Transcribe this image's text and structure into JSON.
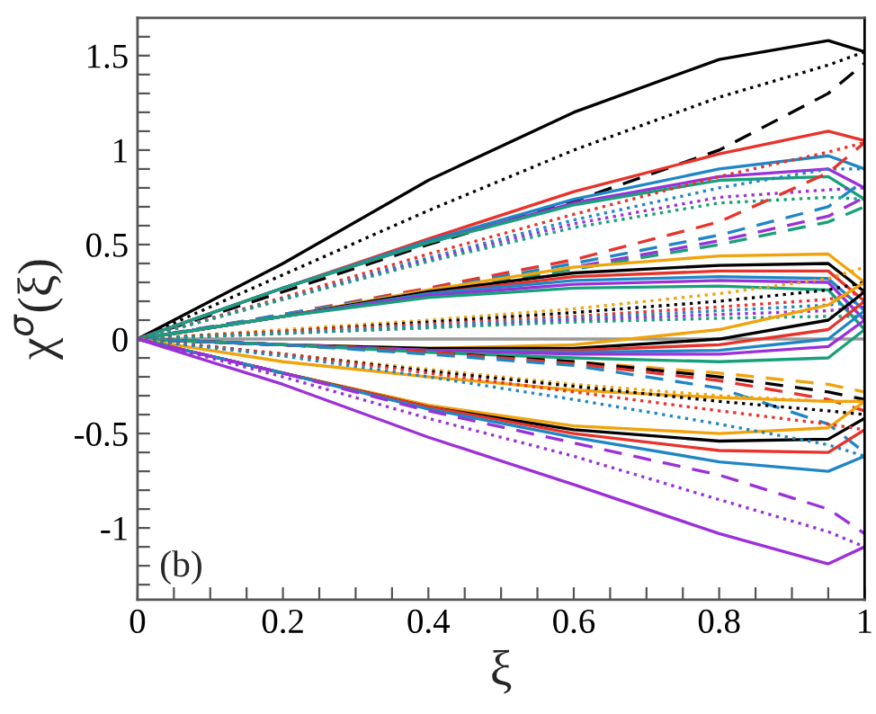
{
  "chart_data": {
    "type": "line",
    "xlabel": "ξ",
    "ylabel": "χ$^{σ}$(ξ)",
    "annotations": [
      "(b)"
    ],
    "x": [
      0,
      0.2,
      0.4,
      0.6,
      0.8,
      0.95,
      1
    ],
    "xlim": [
      0,
      1
    ],
    "ylim": [
      -1.38,
      1.7
    ],
    "xticks": [
      0,
      {
        "value": 0.05,
        "label": null
      },
      {
        "value": 0.1,
        "label": null
      },
      {
        "value": 0.15,
        "label": null
      },
      0.2,
      {
        "value": 0.25,
        "label": null
      },
      {
        "value": 0.3,
        "label": null
      },
      {
        "value": 0.35,
        "label": null
      },
      0.4,
      {
        "value": 0.45,
        "label": null
      },
      {
        "value": 0.5,
        "label": null
      },
      {
        "value": 0.55,
        "label": null
      },
      0.6,
      {
        "value": 0.65,
        "label": null
      },
      {
        "value": 0.7,
        "label": null
      },
      {
        "value": 0.75,
        "label": null
      },
      0.8,
      {
        "value": 0.85,
        "label": null
      },
      {
        "value": 0.9,
        "label": null
      },
      {
        "value": 0.95,
        "label": null
      },
      1
    ],
    "yticks": [
      {
        "value": -1.3,
        "label": null
      },
      {
        "value": -1.2,
        "label": null
      },
      {
        "value": -1.1,
        "label": null
      },
      -1,
      {
        "value": -0.9,
        "label": null
      },
      {
        "value": -0.8,
        "label": null
      },
      {
        "value": -0.7,
        "label": null
      },
      {
        "value": -0.6,
        "label": null
      },
      -0.5,
      {
        "value": -0.4,
        "label": null
      },
      {
        "value": -0.3,
        "label": null
      },
      {
        "value": -0.2,
        "label": null
      },
      {
        "value": -0.1,
        "label": null
      },
      0,
      {
        "value": 0.1,
        "label": null
      },
      {
        "value": 0.2,
        "label": null
      },
      {
        "value": 0.3,
        "label": null
      },
      {
        "value": 0.4,
        "label": null
      },
      0.5,
      {
        "value": 0.6,
        "label": null
      },
      {
        "value": 0.7,
        "label": null
      },
      {
        "value": 0.8,
        "label": null
      },
      {
        "value": 0.9,
        "label": null
      },
      1,
      {
        "value": 1.1,
        "label": null
      },
      {
        "value": 1.2,
        "label": null
      },
      {
        "value": 1.3,
        "label": null
      },
      {
        "value": 1.4,
        "label": null
      },
      1.5,
      {
        "value": 1.6,
        "label": null
      }
    ],
    "grid": false,
    "legend": false,
    "marker": "none",
    "series": [
      {
        "color": "#999999",
        "line_style": "solid",
        "values": [
          0,
          0,
          0,
          0,
          0,
          0,
          0
        ]
      },
      {
        "color": "#000000",
        "line_style": "solid",
        "values": [
          0,
          0.4,
          0.84,
          1.2,
          1.48,
          1.58,
          1.52
        ]
      },
      {
        "color": "#000000",
        "line_style": "dotted",
        "values": [
          0,
          0.34,
          0.68,
          1.0,
          1.28,
          1.45,
          1.52
        ]
      },
      {
        "color": "#000000",
        "line_style": "dashed",
        "values": [
          0,
          0.25,
          0.5,
          0.73,
          1.0,
          1.3,
          1.46
        ]
      },
      {
        "color": "#e8322a",
        "line_style": "solid",
        "values": [
          0,
          0.27,
          0.53,
          0.78,
          0.98,
          1.1,
          1.05
        ]
      },
      {
        "color": "#1f86c5",
        "line_style": "solid",
        "values": [
          0,
          0.27,
          0.52,
          0.74,
          0.9,
          0.97,
          0.9
        ]
      },
      {
        "color": "#9b30d9",
        "line_style": "solid",
        "values": [
          0,
          0.27,
          0.51,
          0.72,
          0.86,
          0.9,
          0.8
        ]
      },
      {
        "color": "#17a07a",
        "line_style": "solid",
        "values": [
          0,
          0.27,
          0.51,
          0.71,
          0.84,
          0.86,
          0.74
        ]
      },
      {
        "color": "#e8322a",
        "line_style": "dotted",
        "values": [
          0,
          0.22,
          0.45,
          0.66,
          0.86,
          0.99,
          1.04
        ]
      },
      {
        "color": "#1f86c5",
        "line_style": "dotted",
        "values": [
          0,
          0.21,
          0.43,
          0.63,
          0.8,
          0.9,
          0.9
        ]
      },
      {
        "color": "#9b30d9",
        "line_style": "dotted",
        "values": [
          0,
          0.21,
          0.42,
          0.61,
          0.75,
          0.79,
          0.8
        ]
      },
      {
        "color": "#17a07a",
        "line_style": "dotted",
        "values": [
          0,
          0.21,
          0.41,
          0.59,
          0.72,
          0.75,
          0.74
        ]
      },
      {
        "color": "#e8322a",
        "line_style": "dashed",
        "values": [
          0,
          0.13,
          0.27,
          0.42,
          0.62,
          0.88,
          1.04
        ]
      },
      {
        "color": "#1f86c5",
        "line_style": "dashed",
        "values": [
          0,
          0.13,
          0.26,
          0.4,
          0.55,
          0.7,
          0.84
        ]
      },
      {
        "color": "#9b30d9",
        "line_style": "dashed",
        "values": [
          0,
          0.12,
          0.25,
          0.38,
          0.52,
          0.65,
          0.75
        ]
      },
      {
        "color": "#17a07a",
        "line_style": "dashed",
        "values": [
          0,
          0.12,
          0.24,
          0.37,
          0.5,
          0.62,
          0.7
        ]
      },
      {
        "color": "#f0a30a",
        "line_style": "solid",
        "values": [
          0,
          0.12,
          0.26,
          0.38,
          0.44,
          0.45,
          0.3
        ]
      },
      {
        "color": "#000000",
        "line_style": "solid",
        "values": [
          0,
          0.12,
          0.25,
          0.35,
          0.39,
          0.4,
          0.25
        ]
      },
      {
        "color": "#e8322a",
        "line_style": "solid",
        "values": [
          0,
          0.12,
          0.24,
          0.33,
          0.36,
          0.36,
          0.2
        ]
      },
      {
        "color": "#1f86c5",
        "line_style": "solid",
        "values": [
          0,
          0.12,
          0.24,
          0.31,
          0.33,
          0.32,
          0.15
        ]
      },
      {
        "color": "#9b30d9",
        "line_style": "solid",
        "values": [
          0,
          0.12,
          0.23,
          0.29,
          0.31,
          0.3,
          0.1
        ]
      },
      {
        "color": "#17a07a",
        "line_style": "solid",
        "values": [
          0,
          0.12,
          0.22,
          0.27,
          0.28,
          0.26,
          0.05
        ]
      },
      {
        "color": "#f0a30a",
        "line_style": "dotted",
        "values": [
          0,
          0.05,
          0.1,
          0.16,
          0.24,
          0.32,
          0.38
        ]
      },
      {
        "color": "#000000",
        "line_style": "dotted",
        "values": [
          0,
          0.04,
          0.09,
          0.14,
          0.2,
          0.26,
          0.3
        ]
      },
      {
        "color": "#e8322a",
        "line_style": "dotted",
        "values": [
          0,
          0.04,
          0.08,
          0.12,
          0.17,
          0.21,
          0.25
        ]
      },
      {
        "color": "#1f86c5",
        "line_style": "dotted",
        "values": [
          0,
          0.03,
          0.07,
          0.11,
          0.15,
          0.18,
          0.2
        ]
      },
      {
        "color": "#9b30d9",
        "line_style": "dotted",
        "values": [
          0,
          0.03,
          0.06,
          0.1,
          0.13,
          0.15,
          0.17
        ]
      },
      {
        "color": "#17a07a",
        "line_style": "dotted",
        "values": [
          0,
          0.03,
          0.06,
          0.09,
          0.11,
          0.12,
          0.12
        ]
      },
      {
        "color": "#f0a30a",
        "line_style": "solid",
        "values": [
          0,
          -0.03,
          -0.05,
          -0.03,
          0.05,
          0.18,
          0.3
        ]
      },
      {
        "color": "#000000",
        "line_style": "solid",
        "values": [
          0,
          -0.03,
          -0.05,
          -0.05,
          0.0,
          0.1,
          0.25
        ]
      },
      {
        "color": "#e8322a",
        "line_style": "solid",
        "values": [
          0,
          -0.03,
          -0.06,
          -0.06,
          -0.03,
          0.05,
          0.2
        ]
      },
      {
        "color": "#1f86c5",
        "line_style": "solid",
        "values": [
          0,
          -0.03,
          -0.06,
          -0.07,
          -0.06,
          0.0,
          0.15
        ]
      },
      {
        "color": "#9b30d9",
        "line_style": "solid",
        "values": [
          0,
          -0.03,
          -0.06,
          -0.08,
          -0.08,
          -0.04,
          0.1
        ]
      },
      {
        "color": "#17a07a",
        "line_style": "solid",
        "values": [
          0,
          -0.03,
          -0.07,
          -0.1,
          -0.12,
          -0.1,
          0.05
        ]
      },
      {
        "color": "#f0a30a",
        "line_style": "dashed",
        "values": [
          0,
          -0.03,
          -0.07,
          -0.12,
          -0.18,
          -0.24,
          -0.28
        ]
      },
      {
        "color": "#000000",
        "line_style": "dashed",
        "values": [
          0,
          -0.03,
          -0.07,
          -0.12,
          -0.2,
          -0.28,
          -0.32
        ]
      },
      {
        "color": "#e8322a",
        "line_style": "dashed",
        "values": [
          0,
          -0.03,
          -0.07,
          -0.13,
          -0.22,
          -0.32,
          -0.38
        ]
      },
      {
        "color": "#1f86c5",
        "line_style": "dashed",
        "values": [
          0,
          -0.03,
          -0.08,
          -0.14,
          -0.26,
          -0.45,
          -0.6
        ]
      },
      {
        "color": "#f0a30a",
        "line_style": "solid",
        "values": [
          0,
          -0.12,
          -0.2,
          -0.27,
          -0.31,
          -0.33,
          -0.33
        ]
      },
      {
        "color": "#f0a30a",
        "line_style": "solid",
        "values": [
          0,
          -0.18,
          -0.35,
          -0.46,
          -0.5,
          -0.47,
          -0.33
        ]
      },
      {
        "color": "#000000",
        "line_style": "solid",
        "values": [
          0,
          -0.18,
          -0.36,
          -0.48,
          -0.54,
          -0.53,
          -0.42
        ]
      },
      {
        "color": "#e8322a",
        "line_style": "solid",
        "values": [
          0,
          -0.18,
          -0.36,
          -0.5,
          -0.59,
          -0.6,
          -0.48
        ]
      },
      {
        "color": "#1f86c5",
        "line_style": "solid",
        "values": [
          0,
          -0.18,
          -0.37,
          -0.52,
          -0.65,
          -0.7,
          -0.62
        ]
      },
      {
        "color": "#f0a30a",
        "line_style": "dotted",
        "values": [
          0,
          -0.08,
          -0.16,
          -0.24,
          -0.3,
          -0.33,
          -0.33
        ]
      },
      {
        "color": "#000000",
        "line_style": "dotted",
        "values": [
          0,
          -0.08,
          -0.17,
          -0.25,
          -0.33,
          -0.38,
          -0.4
        ]
      },
      {
        "color": "#e8322a",
        "line_style": "dotted",
        "values": [
          0,
          -0.08,
          -0.18,
          -0.28,
          -0.38,
          -0.45,
          -0.48
        ]
      },
      {
        "color": "#1f86c5",
        "line_style": "dotted",
        "values": [
          0,
          -0.09,
          -0.2,
          -0.32,
          -0.45,
          -0.56,
          -0.62
        ]
      },
      {
        "color": "#9b30d9",
        "line_style": "solid",
        "values": [
          0,
          -0.24,
          -0.52,
          -0.77,
          -1.03,
          -1.19,
          -1.1
        ]
      },
      {
        "color": "#9b30d9",
        "line_style": "dotted",
        "values": [
          0,
          -0.2,
          -0.42,
          -0.62,
          -0.85,
          -1.02,
          -1.1
        ]
      },
      {
        "color": "#9b30d9",
        "line_style": "dashed",
        "values": [
          0,
          -0.18,
          -0.38,
          -0.55,
          -0.72,
          -0.9,
          -1.03
        ]
      }
    ]
  }
}
